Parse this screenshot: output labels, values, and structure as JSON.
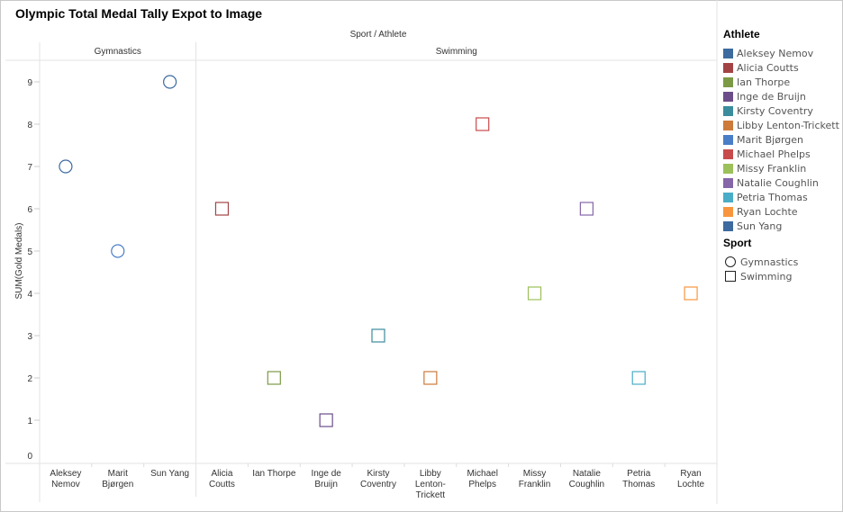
{
  "title": "Olympic Total Medal Tally Expot to Image",
  "chart_data": {
    "type": "scatter",
    "title": "Olympic Total Medal Tally Expot to Image",
    "column_header": "Sport / Athlete",
    "ylabel": "SUM(Gold Medals)",
    "ylim": [
      0,
      9.5
    ],
    "yticks": [
      0,
      1,
      2,
      3,
      4,
      5,
      6,
      7,
      8,
      9
    ],
    "grid": false,
    "legend_placement": "right",
    "panes": [
      {
        "sport": "Gymnastics",
        "shape": "circle",
        "points": [
          {
            "athlete": "Aleksey Nemov",
            "label_lines": [
              "Aleksey",
              "Nemov"
            ],
            "value": 7
          },
          {
            "athlete": "Marit Bjørgen",
            "label_lines": [
              "Marit",
              "Bjørgen"
            ],
            "value": 5
          },
          {
            "athlete": "Sun Yang",
            "label_lines": [
              "Sun Yang"
            ],
            "value": 9
          }
        ]
      },
      {
        "sport": "Swimming",
        "shape": "square",
        "points": [
          {
            "athlete": "Alicia Coutts",
            "label_lines": [
              "Alicia",
              "Coutts"
            ],
            "value": 6
          },
          {
            "athlete": "Ian Thorpe",
            "label_lines": [
              "Ian Thorpe"
            ],
            "value": 2
          },
          {
            "athlete": "Inge de Bruijn",
            "label_lines": [
              "Inge de",
              "Bruijn"
            ],
            "value": 1
          },
          {
            "athlete": "Kirsty Coventry",
            "label_lines": [
              "Kirsty",
              "Coventry"
            ],
            "value": 3
          },
          {
            "athlete": "Libby Lenton-Trickett",
            "label_lines": [
              "Libby",
              "Lenton-",
              "Trickett"
            ],
            "value": 2
          },
          {
            "athlete": "Michael Phelps",
            "label_lines": [
              "Michael",
              "Phelps"
            ],
            "value": 8
          },
          {
            "athlete": "Missy Franklin",
            "label_lines": [
              "Missy",
              "Franklin"
            ],
            "value": 4
          },
          {
            "athlete": "Natalie Coughlin",
            "label_lines": [
              "Natalie",
              "Coughlin"
            ],
            "value": 6
          },
          {
            "athlete": "Petria Thomas",
            "label_lines": [
              "Petria",
              "Thomas"
            ],
            "value": 2
          },
          {
            "athlete": "Ryan Lochte",
            "label_lines": [
              "Ryan",
              "Lochte"
            ],
            "value": 4
          }
        ]
      }
    ]
  },
  "legend": {
    "athlete_title": "Athlete",
    "athletes": [
      {
        "name": "Aleksey Nemov",
        "color": "#3d6a9f"
      },
      {
        "name": "Alicia Coutts",
        "color": "#a34444"
      },
      {
        "name": "Ian Thorpe",
        "color": "#7c9a46"
      },
      {
        "name": "Inge de Bruijn",
        "color": "#6c4d8a"
      },
      {
        "name": "Kirsty Coventry",
        "color": "#3b8c9c"
      },
      {
        "name": "Libby Lenton-Trickett",
        "color": "#cd7a3a"
      },
      {
        "name": "Marit Bjørgen",
        "color": "#4a7fc7"
      },
      {
        "name": "Michael Phelps",
        "color": "#c84b4b"
      },
      {
        "name": "Missy Franklin",
        "color": "#9cc05a"
      },
      {
        "name": "Natalie Coughlin",
        "color": "#8566a8"
      },
      {
        "name": "Petria Thomas",
        "color": "#4aadc8"
      },
      {
        "name": "Ryan Lochte",
        "color": "#f8963f"
      },
      {
        "name": "Sun Yang",
        "color": "#3d6a9f"
      }
    ],
    "sport_title": "Sport",
    "sports": [
      {
        "name": "Gymnastics",
        "shape": "circle"
      },
      {
        "name": "Swimming",
        "shape": "square"
      }
    ]
  }
}
